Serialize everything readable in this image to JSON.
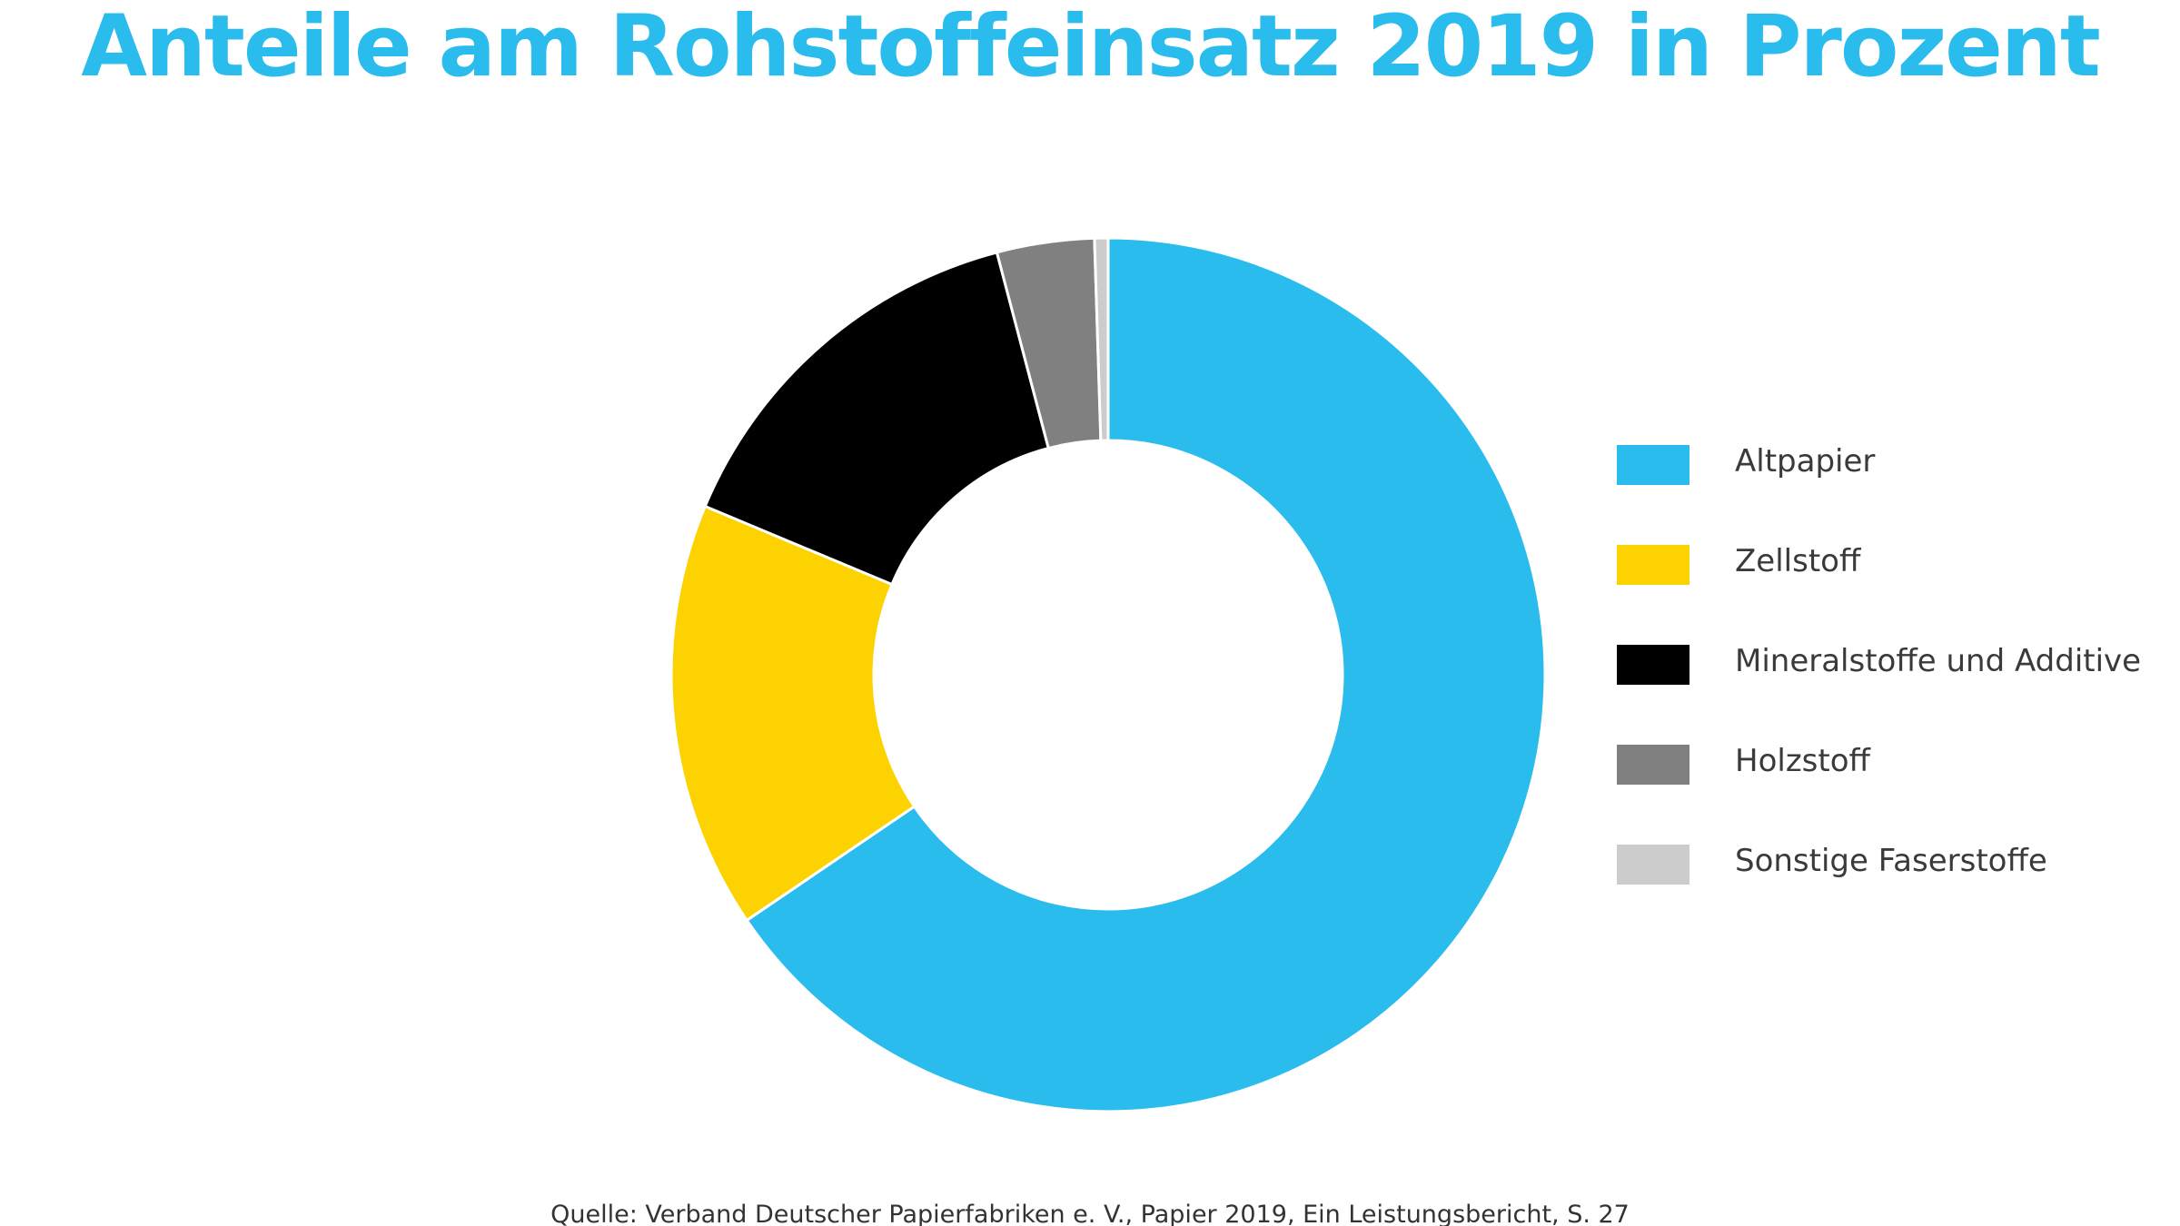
{
  "chart_data": {
    "type": "pie",
    "title": "Anteile am Rohstoffeinsatz 2019 in Prozent",
    "categories": [
      "Altpapier",
      "Zellstoff",
      "Mineralstoffe und Additive",
      "Holzstoff",
      "Sonstige Faserstoffe"
    ],
    "values": [
      65.5,
      15.8,
      14.6,
      3.6,
      0.5
    ],
    "colors": [
      "#2bbcee",
      "#fcd200",
      "#000000",
      "#808080",
      "#cccccc"
    ],
    "donut": true,
    "start_angle_deg": 0,
    "direction": "clockwise",
    "legend": "right",
    "source": "Quelle: Verband Deutscher Papierfabriken e. V., Papier 2019, Ein Leistungsbericht, S. 27"
  }
}
